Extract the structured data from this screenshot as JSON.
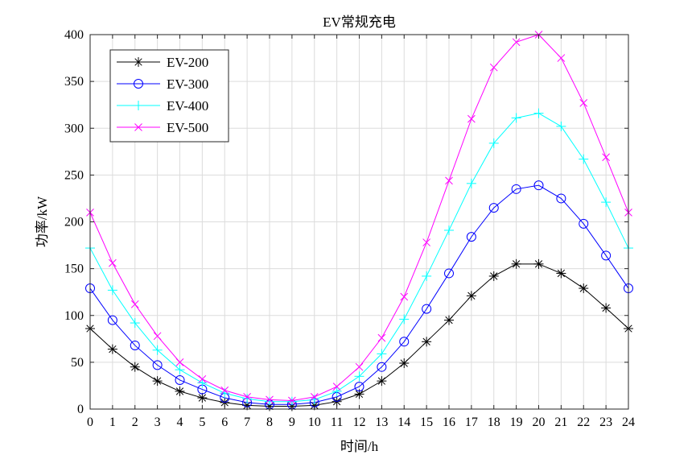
{
  "chart_data": {
    "type": "line",
    "title": "EV常规充电",
    "xlabel": "时间/h",
    "ylabel": "功率/kW",
    "xlim": [
      0,
      24
    ],
    "ylim": [
      0,
      400
    ],
    "xticks": [
      "0",
      "1",
      "2",
      "3",
      "4",
      "5",
      "6",
      "7",
      "8",
      "9",
      "10",
      "11",
      "12",
      "13",
      "14",
      "15",
      "16",
      "17",
      "18",
      "19",
      "20",
      "21",
      "22",
      "23",
      "24"
    ],
    "yticks": [
      "0",
      "50",
      "100",
      "150",
      "200",
      "250",
      "300",
      "350",
      "400"
    ],
    "grid": true,
    "legend_position": "top-left",
    "x": [
      0,
      1,
      2,
      3,
      4,
      5,
      6,
      7,
      8,
      9,
      10,
      11,
      12,
      13,
      14,
      15,
      16,
      17,
      18,
      19,
      20,
      21,
      22,
      23,
      24
    ],
    "series": [
      {
        "name": "EV-200",
        "color": "#000000",
        "marker": "asterisk",
        "values": [
          86,
          64,
          45,
          30,
          19,
          12,
          7,
          4,
          3,
          3,
          4,
          8,
          16,
          30,
          49,
          72,
          95,
          121,
          142,
          155,
          155,
          145,
          129,
          108,
          86
        ]
      },
      {
        "name": "EV-300",
        "color": "#0000ff",
        "marker": "circle",
        "values": [
          129,
          95,
          68,
          47,
          31,
          21,
          12,
          7,
          5,
          5,
          7,
          13,
          24,
          45,
          72,
          107,
          145,
          184,
          215,
          235,
          239,
          225,
          198,
          164,
          129
        ]
      },
      {
        "name": "EV-400",
        "color": "#00ffff",
        "marker": "plus",
        "values": [
          172,
          127,
          92,
          63,
          42,
          28,
          17,
          11,
          8,
          8,
          10,
          19,
          35,
          59,
          96,
          142,
          191,
          241,
          284,
          311,
          316,
          302,
          267,
          221,
          172
        ]
      },
      {
        "name": "EV-500",
        "color": "#ff00ff",
        "marker": "x",
        "values": [
          210,
          156,
          112,
          78,
          50,
          32,
          20,
          13,
          10,
          9,
          13,
          24,
          45,
          76,
          120,
          178,
          244,
          310,
          365,
          392,
          400,
          375,
          327,
          269,
          210
        ]
      }
    ]
  }
}
